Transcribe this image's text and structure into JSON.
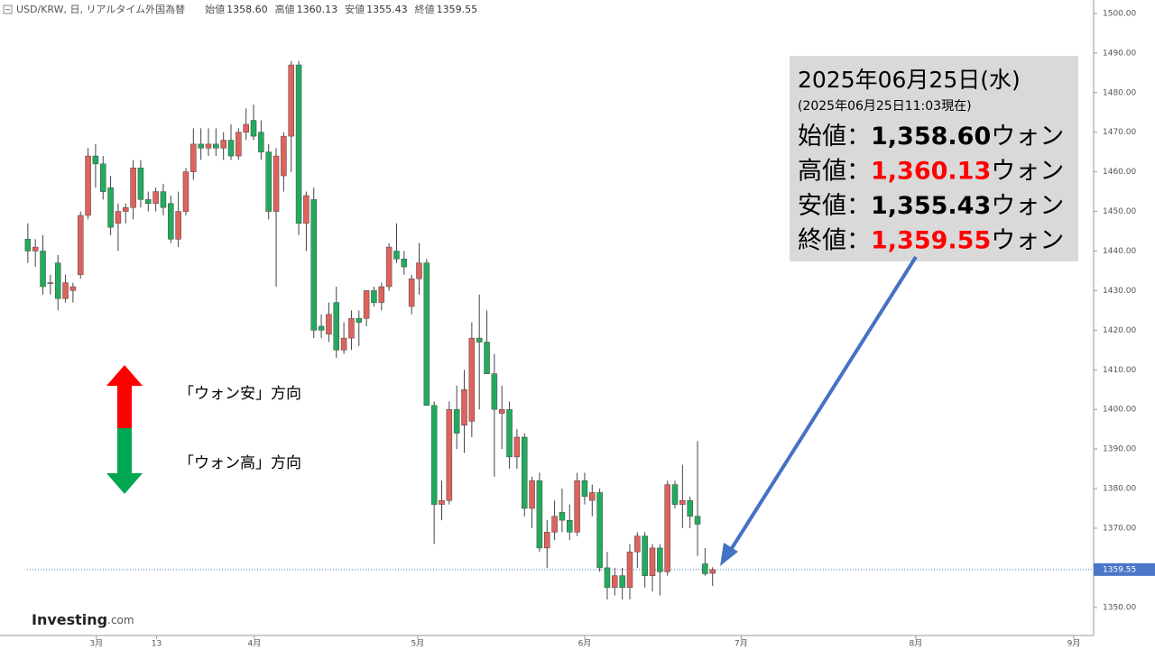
{
  "header": {
    "symbol": "USD/KRW, 日, リアルタイム外国為替",
    "fields": [
      {
        "label": "始値",
        "value": "1358.60"
      },
      {
        "label": "高値",
        "value": "1360.13"
      },
      {
        "label": "安値",
        "value": "1355.43"
      },
      {
        "label": "終値",
        "value": "1359.55"
      }
    ]
  },
  "logo": {
    "brand": "Investing",
    "suffix": ".com"
  },
  "legend_arrows": {
    "up": "「ウォン安」方向",
    "down": "「ウォン高」方向"
  },
  "info_box": {
    "date": "2025年06月25日(水)",
    "as_of": "(2025年06月25日11:03現在)",
    "rows": [
      {
        "label": "始値：",
        "value": "1,358.60",
        "unit": "ウォン",
        "color": "#000000"
      },
      {
        "label": "高値：",
        "value": "1,360.13",
        "unit": "ウォン",
        "color": "#ff0000"
      },
      {
        "label": "安値：",
        "value": "1,355.43",
        "unit": "ウォン",
        "color": "#000000"
      },
      {
        "label": "終値：",
        "value": "1,359.55",
        "unit": "ウォン",
        "color": "#ff0000"
      }
    ]
  },
  "chart_data": {
    "type": "candlestick",
    "open": [
      1443,
      1440,
      1440,
      1432,
      1437,
      1428,
      1430,
      1434,
      1449,
      1464,
      1462,
      1456,
      1447,
      1450,
      1451,
      1461,
      1453,
      1452,
      1455,
      1452,
      1443,
      1450,
      1460,
      1467,
      1466,
      1467,
      1466,
      1468,
      1464,
      1470,
      1473,
      1470,
      1465,
      1450,
      1459,
      1469,
      1487,
      1447,
      1453,
      1421,
      1419,
      1427,
      1415,
      1418,
      1423,
      1423,
      1430,
      1427,
      1431,
      1440,
      1438,
      1426,
      1433,
      1437,
      1401,
      1376,
      1377,
      1400,
      1396,
      1397,
      1418,
      1417,
      1409,
      1399,
      1400,
      1388,
      1393,
      1375,
      1382,
      1365,
      1369,
      1374,
      1372,
      1369,
      1382,
      1377,
      1379,
      1360,
      1355,
      1358,
      1355,
      1364,
      1368,
      1358,
      1365,
      1359,
      1381,
      1376,
      1377,
      1373,
      1361,
      1358.6
    ],
    "high": [
      1447,
      1443,
      1444,
      1434,
      1439,
      1434,
      1432,
      1450,
      1466,
      1467,
      1464,
      1459,
      1452,
      1452,
      1463,
      1463,
      1455,
      1456,
      1457,
      1454,
      1455,
      1461,
      1471,
      1471,
      1471,
      1471,
      1470,
      1472,
      1471,
      1476,
      1477,
      1473,
      1467,
      1466,
      1470,
      1488,
      1488,
      1455,
      1456,
      1424,
      1427,
      1431,
      1422,
      1425,
      1425,
      1430,
      1431,
      1432,
      1442,
      1447,
      1440,
      1434,
      1442,
      1438,
      1402,
      1382,
      1402,
      1406,
      1410,
      1422,
      1429,
      1425,
      1414,
      1406,
      1402,
      1395,
      1394,
      1383,
      1384,
      1372,
      1377,
      1380,
      1376,
      1384,
      1384,
      1381,
      1380,
      1364,
      1360,
      1360,
      1366,
      1369,
      1369,
      1366,
      1366,
      1382,
      1382,
      1386,
      1378,
      1392,
      1365,
      1360.13
    ],
    "low": [
      1437,
      1436,
      1429,
      1429,
      1425,
      1427,
      1427,
      1433,
      1448,
      1456,
      1453,
      1444,
      1440,
      1447,
      1448,
      1451,
      1450,
      1450,
      1449,
      1442,
      1441,
      1449,
      1458,
      1463,
      1464,
      1464,
      1463,
      1463,
      1463,
      1468,
      1468,
      1463,
      1448,
      1431,
      1455,
      1460,
      1444,
      1440,
      1418,
      1418,
      1417,
      1413,
      1414,
      1415,
      1416,
      1421,
      1426,
      1425,
      1430,
      1437,
      1434,
      1424,
      1429,
      1401,
      1366,
      1372,
      1376,
      1390,
      1389,
      1393,
      1400,
      1409,
      1383,
      1390,
      1385,
      1385,
      1373,
      1370,
      1364,
      1360,
      1367,
      1369,
      1367,
      1368,
      1376,
      1373,
      1359,
      1352,
      1353,
      1352,
      1352,
      1360,
      1355,
      1354,
      1353,
      1358,
      1375,
      1370,
      1370,
      1363,
      1358,
      1355.43
    ],
    "close": [
      1440,
      1441,
      1431,
      1432,
      1428,
      1432,
      1431,
      1449,
      1464,
      1462,
      1455,
      1446,
      1450,
      1451,
      1461,
      1453,
      1452,
      1455,
      1451,
      1443,
      1450,
      1460,
      1467,
      1466,
      1467,
      1466,
      1468,
      1464,
      1470,
      1472,
      1469,
      1465,
      1450,
      1464,
      1469,
      1487,
      1447,
      1454,
      1420,
      1420,
      1424,
      1415,
      1418,
      1423,
      1422,
      1430,
      1427,
      1431,
      1441,
      1438,
      1436,
      1433,
      1437,
      1401,
      1376,
      1377,
      1400,
      1394,
      1405,
      1418,
      1417,
      1409,
      1400,
      1400,
      1388,
      1393,
      1375,
      1382,
      1365,
      1369,
      1373,
      1372,
      1369,
      1382,
      1378,
      1379,
      1360,
      1355,
      1358,
      1355,
      1364,
      1368,
      1358,
      1365,
      1359,
      1381,
      1376,
      1377,
      1373,
      1371,
      1358.5,
      1359.55
    ],
    "up_color": "#e0625c",
    "down_color": "#22ab5f",
    "xlim": [
      -3.7,
      141.4
    ],
    "xticks": [
      {
        "value": 9.1,
        "label": "3月"
      },
      {
        "value": 17.1,
        "label": "13"
      },
      {
        "value": 30.1,
        "label": "4月"
      },
      {
        "value": 51.8,
        "label": "5月"
      },
      {
        "value": 74,
        "label": "6月"
      },
      {
        "value": 94.8,
        "label": "7月"
      },
      {
        "value": 118,
        "label": "8月"
      },
      {
        "value": 139,
        "label": "9月"
      }
    ],
    "ylim": [
      1342.9,
      1503.4
    ],
    "yticks": [
      {
        "value": 1350,
        "label": "1350.00"
      },
      {
        "value": 1360,
        "label": "1360.00"
      },
      {
        "value": 1370,
        "label": "1370.00"
      },
      {
        "value": 1380,
        "label": "1380.00"
      },
      {
        "value": 1390,
        "label": "1390.00"
      },
      {
        "value": 1400,
        "label": "1400.00"
      },
      {
        "value": 1410,
        "label": "1410.00"
      },
      {
        "value": 1420,
        "label": "1420.00"
      },
      {
        "value": 1430,
        "label": "1430.00"
      },
      {
        "value": 1440,
        "label": "1440.00"
      },
      {
        "value": 1450,
        "label": "1450.00"
      },
      {
        "value": 1460,
        "label": "1460.00"
      },
      {
        "value": 1470,
        "label": "1470.00"
      },
      {
        "value": 1480,
        "label": "1480.00"
      },
      {
        "value": 1490,
        "label": "1490.00"
      },
      {
        "value": 1500,
        "label": "1500.00"
      }
    ],
    "last_price": {
      "value": 1359.55,
      "label": "1359.55",
      "color": "#4a77c9"
    }
  }
}
